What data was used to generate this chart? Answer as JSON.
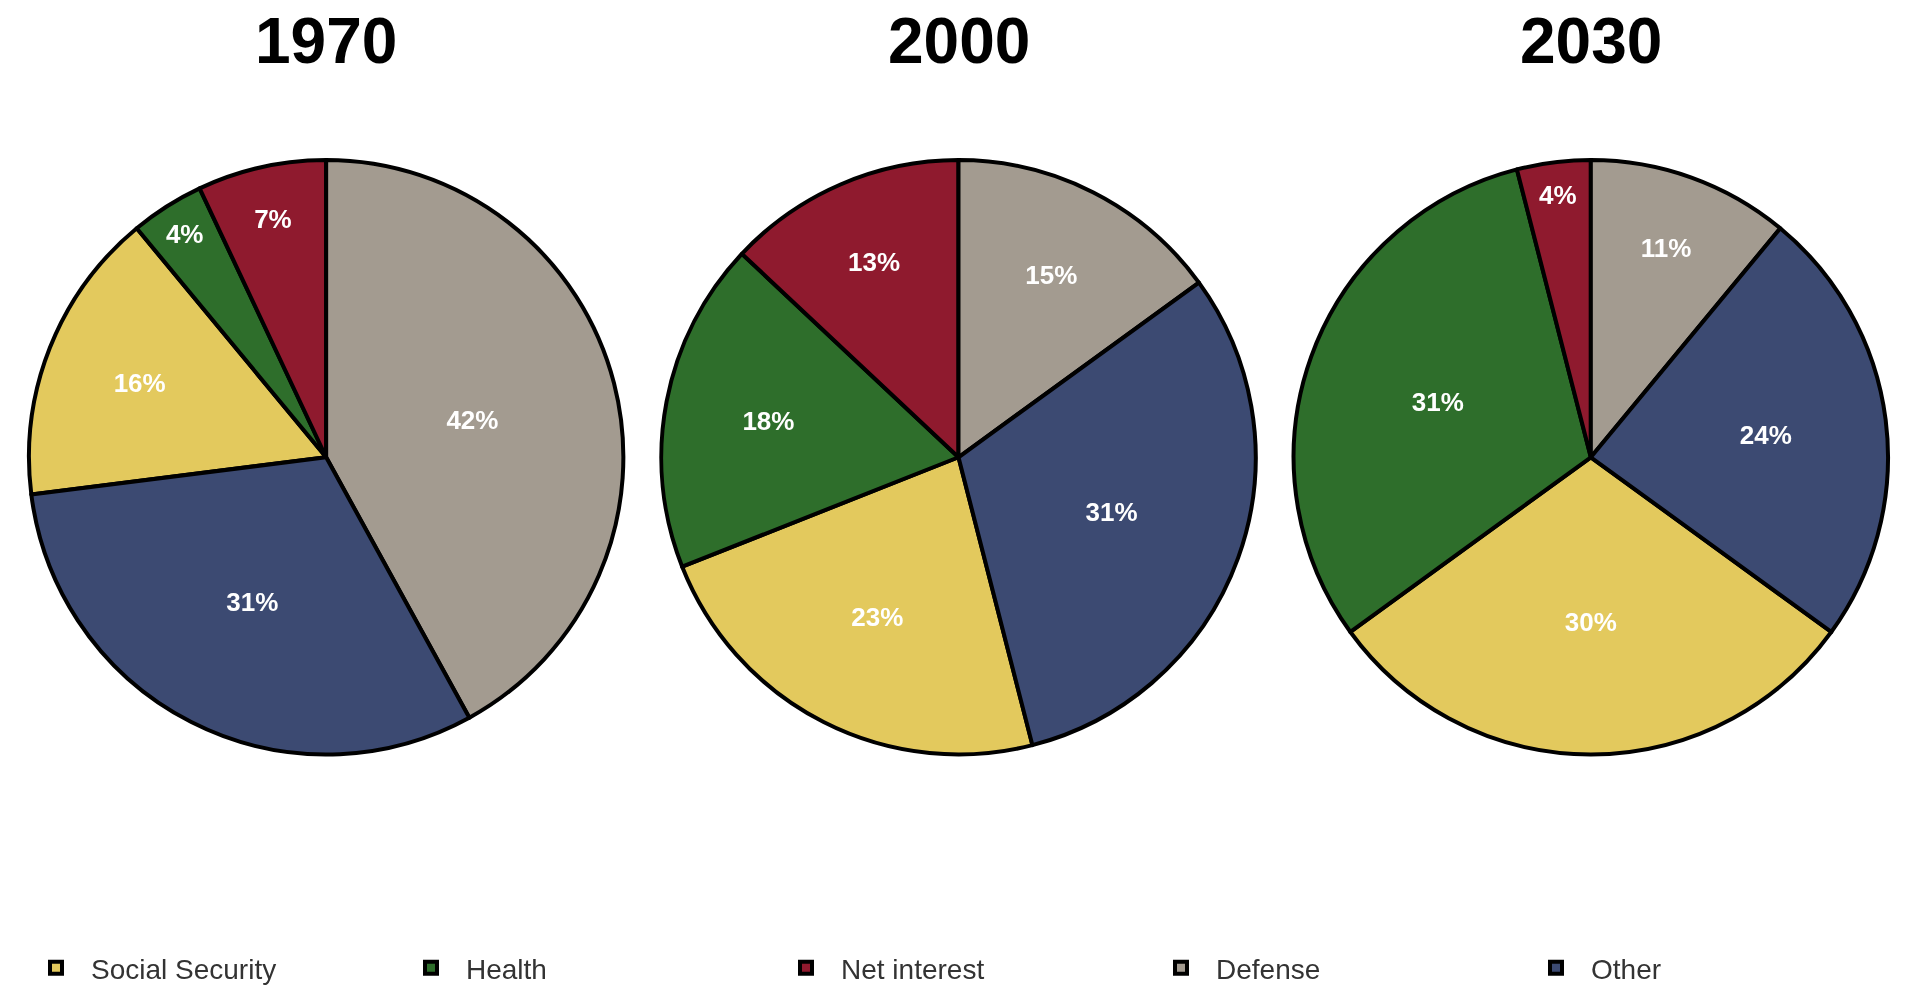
{
  "chart_data": [
    {
      "type": "pie",
      "title": "1970",
      "categories": [
        "Social Security",
        "Health",
        "Net interest",
        "Defense",
        "Other"
      ],
      "values": [
        16,
        4,
        7,
        42,
        31
      ],
      "value_labels": [
        "16%",
        "4%",
        "7%",
        "42%",
        "31%"
      ],
      "colors": [
        "#e3c95d",
        "#2e6e2b",
        "#8f1a2e",
        "#a39b90",
        "#3c4a72"
      ],
      "legend": "bottom"
    },
    {
      "type": "pie",
      "title": "2000",
      "categories": [
        null,
        null,
        null,
        null,
        null
      ],
      "values": [
        23,
        18,
        13,
        15,
        31
      ],
      "value_labels": [
        "23%",
        "18%",
        "13%",
        "15%",
        "31%"
      ],
      "colors": [
        "#e3c95d",
        "#2e6e2b",
        "#8f1a2e",
        "#a39b90",
        "#3c4a72"
      ]
    },
    {
      "type": "pie",
      "title": "2030",
      "categories": [
        null,
        null,
        null,
        null,
        null
      ],
      "values": [
        30,
        31,
        4,
        11,
        24
      ],
      "value_labels": [
        "30%",
        "31%",
        "4%",
        "11%",
        "24%"
      ],
      "colors": [
        "#e3c95d",
        "#2e6e2b",
        "#8f1a2e",
        "#a39b90",
        "#3c4a72"
      ]
    }
  ]
}
